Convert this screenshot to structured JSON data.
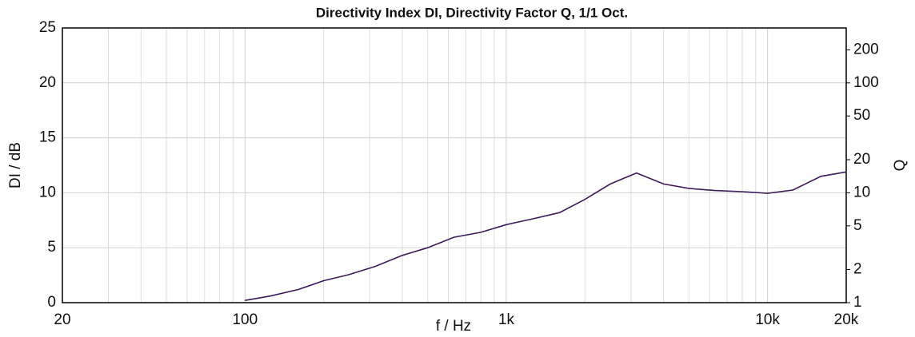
{
  "chart_data": {
    "type": "line",
    "title": "Directivity Index DI, Directivity Factor Q, 1/1 Oct.",
    "xlabel": "f / Hz",
    "ylabel": "DI / dB",
    "y2label": "Q",
    "x": [
      100,
      125,
      160,
      200,
      250,
      315,
      400,
      500,
      630,
      800,
      1000,
      1250,
      1600,
      2000,
      2500,
      3150,
      4000,
      5000,
      6300,
      8000,
      10000,
      12500,
      16000,
      20000
    ],
    "series": [
      {
        "name": "DI",
        "color": "#3d1a5c",
        "values": [
          0.2,
          0.6,
          1.2,
          2.0,
          2.55,
          3.3,
          4.3,
          5.0,
          5.95,
          6.4,
          7.1,
          7.6,
          8.2,
          9.4,
          10.8,
          11.8,
          10.8,
          10.4,
          10.2,
          10.1,
          9.95,
          10.25,
          11.5,
          11.9
        ]
      }
    ],
    "xscale": "log",
    "xlim": [
      20,
      20000
    ],
    "xticks": [
      20,
      100,
      {
        "value": 1000,
        "label": "1k"
      },
      {
        "value": 10000,
        "label": "10k"
      },
      {
        "value": 20000,
        "label": "20k"
      }
    ],
    "xminor_ticks": [
      30,
      40,
      50,
      60,
      70,
      80,
      90,
      200,
      300,
      400,
      500,
      600,
      700,
      800,
      900,
      2000,
      3000,
      4000,
      5000,
      6000,
      7000,
      8000,
      9000
    ],
    "ylim": [
      0,
      25
    ],
    "yticks": [
      0,
      5,
      10,
      15,
      20,
      25
    ],
    "y2scale": "log",
    "y2lim": [
      1,
      316.23
    ],
    "y2ticks": [
      1,
      2,
      5,
      10,
      20,
      50,
      100,
      200
    ],
    "grid": true
  }
}
